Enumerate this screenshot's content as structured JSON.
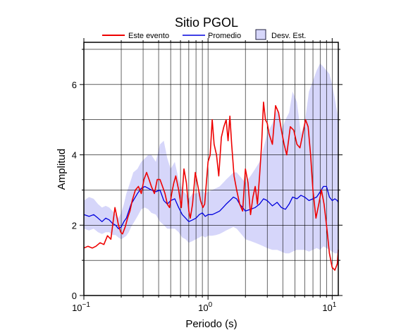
{
  "chart_data": {
    "type": "line",
    "title": "Sitio PGOL",
    "xlabel": "Periodo (s)",
    "ylabel": "Amplitud",
    "xscale": "log",
    "xlim": [
      0.1,
      11.2
    ],
    "ylim": [
      0,
      7.2
    ],
    "grid": true,
    "legend_placement": "top",
    "x_tick_labels": [
      {
        "value": 0.1,
        "base": "10",
        "exp": "−1"
      },
      {
        "value": 1,
        "base": "10",
        "exp": "0"
      },
      {
        "value": 10,
        "base": "10",
        "exp": "1"
      }
    ],
    "y_ticks": [
      0,
      2,
      4,
      6
    ],
    "y_tick_labels": [
      "0",
      "2",
      "4",
      "6"
    ],
    "legend": {
      "este_label": "Este evento",
      "promedio_label": "Promedio",
      "desv_label": "Desv. Est."
    },
    "colors": {
      "este": "#ee0000",
      "promedio": "#0000dd",
      "desv_fill": "#d6d6fa",
      "desv_stroke": "#202040"
    },
    "series": [
      {
        "name": "Este evento",
        "x": [
          0.1,
          0.108,
          0.117,
          0.125,
          0.135,
          0.145,
          0.155,
          0.165,
          0.172,
          0.178,
          0.183,
          0.19,
          0.198,
          0.205,
          0.215,
          0.225,
          0.235,
          0.245,
          0.26,
          0.275,
          0.29,
          0.305,
          0.32,
          0.335,
          0.35,
          0.37,
          0.39,
          0.41,
          0.43,
          0.45,
          0.47,
          0.49,
          0.51,
          0.53,
          0.55,
          0.58,
          0.61,
          0.64,
          0.67,
          0.7,
          0.72,
          0.75,
          0.79,
          0.83,
          0.87,
          0.91,
          0.94,
          0.97,
          1.0,
          1.04,
          1.08,
          1.12,
          1.17,
          1.22,
          1.28,
          1.34,
          1.4,
          1.45,
          1.5,
          1.55,
          1.62,
          1.7,
          1.8,
          1.9,
          2.0,
          2.1,
          2.2,
          2.3,
          2.4,
          2.5,
          2.6,
          2.7,
          2.8,
          2.9,
          3.0,
          3.1,
          3.3,
          3.5,
          3.7,
          3.9,
          4.1,
          4.3,
          4.6,
          4.9,
          5.2,
          5.5,
          5.8,
          6.1,
          6.4,
          6.7,
          7.0,
          7.4,
          7.8,
          8.2,
          8.6,
          9.0,
          9.5,
          10.0,
          10.5,
          11.0,
          11.2
        ],
        "values": [
          1.35,
          1.4,
          1.35,
          1.4,
          1.5,
          1.45,
          1.7,
          1.6,
          2.1,
          2.5,
          2.3,
          2.0,
          1.8,
          1.75,
          1.95,
          2.2,
          2.4,
          2.7,
          3.0,
          3.1,
          2.9,
          3.3,
          3.5,
          3.3,
          3.1,
          2.9,
          3.3,
          3.3,
          3.1,
          2.9,
          2.6,
          2.5,
          2.9,
          3.2,
          3.4,
          3.0,
          2.5,
          3.6,
          3.2,
          2.4,
          2.2,
          2.6,
          3.5,
          3.1,
          2.7,
          2.5,
          2.6,
          3.2,
          3.8,
          4.0,
          5.0,
          4.3,
          4.0,
          3.4,
          4.5,
          4.8,
          5.0,
          4.4,
          5.1,
          4.3,
          3.4,
          3.0,
          2.6,
          2.4,
          3.6,
          3.2,
          2.3,
          2.8,
          3.1,
          2.6,
          3.4,
          4.3,
          5.5,
          5.0,
          4.9,
          4.6,
          4.3,
          5.4,
          5.2,
          4.7,
          4.3,
          4.0,
          4.8,
          4.7,
          4.3,
          4.2,
          4.6,
          5.0,
          4.8,
          4.0,
          3.0,
          2.2,
          2.6,
          3.0,
          2.6,
          2.0,
          1.2,
          0.8,
          0.72,
          0.9,
          1.3
        ]
      },
      {
        "name": "Promedio",
        "x": [
          0.1,
          0.11,
          0.12,
          0.13,
          0.14,
          0.15,
          0.16,
          0.17,
          0.18,
          0.19,
          0.2,
          0.21,
          0.22,
          0.23,
          0.24,
          0.25,
          0.27,
          0.29,
          0.31,
          0.33,
          0.35,
          0.38,
          0.41,
          0.44,
          0.47,
          0.5,
          0.54,
          0.58,
          0.62,
          0.66,
          0.7,
          0.75,
          0.8,
          0.85,
          0.9,
          0.95,
          1.0,
          1.08,
          1.16,
          1.24,
          1.32,
          1.4,
          1.5,
          1.6,
          1.7,
          1.8,
          1.9,
          2.0,
          2.2,
          2.4,
          2.6,
          2.8,
          3.0,
          3.3,
          3.6,
          3.9,
          4.2,
          4.5,
          4.8,
          5.2,
          5.6,
          6.0,
          6.5,
          7.0,
          7.5,
          8.0,
          8.5,
          9.0,
          9.5,
          10.0,
          10.5,
          11.0,
          11.2
        ],
        "values": [
          2.3,
          2.25,
          2.3,
          2.2,
          2.1,
          2.2,
          2.15,
          2.05,
          2.0,
          1.9,
          1.95,
          2.1,
          2.2,
          2.4,
          2.6,
          2.7,
          2.9,
          3.05,
          3.1,
          3.05,
          3.0,
          2.95,
          3.0,
          2.7,
          2.6,
          2.7,
          2.75,
          2.5,
          2.3,
          2.2,
          2.1,
          2.15,
          2.2,
          2.3,
          2.35,
          2.25,
          2.3,
          2.3,
          2.35,
          2.4,
          2.5,
          2.6,
          2.7,
          2.8,
          2.75,
          2.6,
          2.5,
          2.4,
          2.45,
          2.5,
          2.6,
          2.75,
          2.7,
          2.55,
          2.65,
          2.5,
          2.45,
          2.6,
          2.8,
          2.75,
          2.85,
          2.8,
          2.7,
          2.75,
          2.8,
          2.95,
          3.1,
          3.1,
          2.8,
          2.7,
          2.75,
          2.7,
          2.65
        ]
      },
      {
        "name": "Desv. Est.",
        "x": [
          0.1,
          0.11,
          0.12,
          0.13,
          0.14,
          0.15,
          0.16,
          0.17,
          0.18,
          0.19,
          0.2,
          0.21,
          0.22,
          0.23,
          0.24,
          0.25,
          0.27,
          0.29,
          0.31,
          0.33,
          0.35,
          0.38,
          0.41,
          0.44,
          0.47,
          0.5,
          0.54,
          0.58,
          0.62,
          0.66,
          0.7,
          0.75,
          0.8,
          0.85,
          0.9,
          0.95,
          1.0,
          1.08,
          1.16,
          1.24,
          1.32,
          1.4,
          1.5,
          1.6,
          1.7,
          1.8,
          1.9,
          2.0,
          2.2,
          2.4,
          2.6,
          2.8,
          3.0,
          3.3,
          3.6,
          3.9,
          4.2,
          4.5,
          4.8,
          5.2,
          5.6,
          6.0,
          6.5,
          7.0,
          7.5,
          8.0,
          8.5,
          9.0,
          9.5,
          10.0,
          10.5,
          11.0,
          11.2
        ],
        "upper": [
          2.7,
          2.8,
          2.75,
          2.6,
          2.5,
          2.55,
          2.5,
          2.4,
          2.3,
          2.2,
          2.35,
          2.6,
          2.9,
          3.1,
          3.3,
          3.5,
          3.6,
          3.8,
          3.9,
          4.0,
          4.0,
          3.8,
          4.3,
          4.4,
          3.9,
          3.6,
          3.8,
          3.3,
          3.0,
          2.9,
          2.75,
          2.9,
          2.9,
          2.95,
          3.0,
          2.9,
          2.95,
          3.0,
          3.05,
          3.1,
          3.2,
          3.3,
          3.4,
          3.5,
          3.5,
          3.4,
          3.3,
          3.2,
          3.4,
          3.6,
          3.8,
          4.2,
          4.6,
          4.9,
          5.3,
          4.7,
          5.0,
          5.2,
          5.8,
          5.5,
          4.6,
          4.9,
          5.8,
          6.1,
          6.4,
          6.6,
          6.5,
          6.4,
          6.3,
          6.0,
          5.6,
          5.2,
          5.0
        ],
        "lower": [
          1.9,
          1.85,
          1.9,
          1.8,
          1.75,
          1.8,
          1.8,
          1.72,
          1.72,
          1.65,
          1.6,
          1.65,
          1.7,
          1.8,
          1.95,
          2.05,
          2.25,
          2.45,
          2.5,
          2.45,
          2.35,
          2.3,
          2.1,
          2.0,
          1.9,
          1.9,
          1.9,
          1.8,
          1.65,
          1.6,
          1.5,
          1.55,
          1.6,
          1.65,
          1.7,
          1.65,
          1.7,
          1.7,
          1.72,
          1.75,
          1.8,
          1.85,
          1.9,
          1.95,
          1.9,
          1.8,
          1.7,
          1.6,
          1.55,
          1.5,
          1.45,
          1.4,
          1.35,
          1.3,
          1.3,
          1.25,
          1.2,
          1.2,
          1.25,
          1.3,
          1.3,
          1.3,
          1.25,
          1.3,
          1.35,
          1.3,
          1.4,
          1.35,
          1.3,
          1.25,
          1.2,
          1.2,
          1.2
        ]
      }
    ]
  }
}
